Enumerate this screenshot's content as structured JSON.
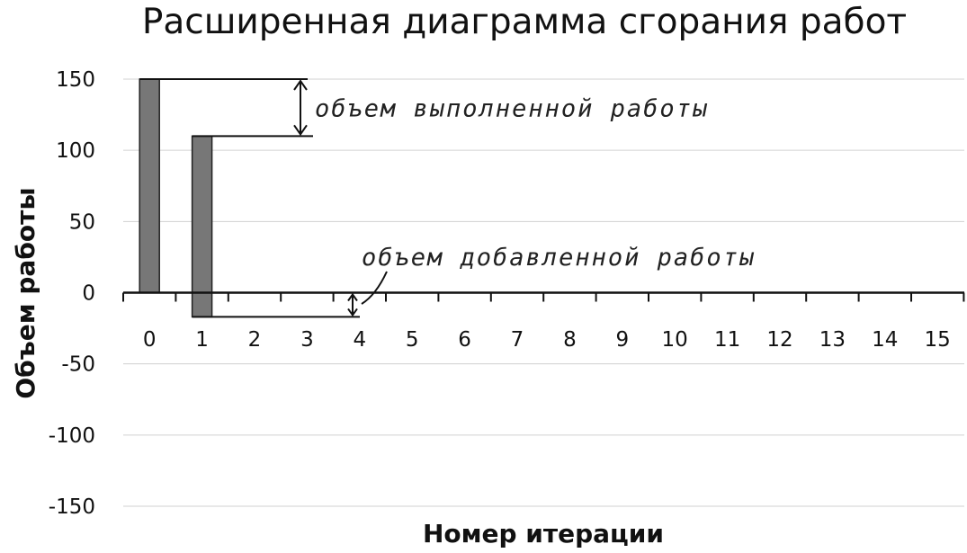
{
  "chart_data": {
    "type": "bar",
    "title": "Расширенная диаграмма сгорания работ",
    "xlabel": "Номер итерации",
    "ylabel": "Объем работы",
    "categories": [
      "0",
      "1",
      "2",
      "3",
      "4",
      "5",
      "6",
      "7",
      "8",
      "9",
      "10",
      "11",
      "12",
      "13",
      "14",
      "15"
    ],
    "series": [
      {
        "values": [
          150,
          110,
          null,
          null,
          null,
          null,
          null,
          null,
          null,
          null,
          null,
          null,
          null,
          null,
          null,
          null
        ],
        "values_below_zero": [
          0,
          -17,
          null,
          null,
          null,
          null,
          null,
          null,
          null,
          null,
          null,
          null,
          null,
          null,
          null,
          null
        ]
      }
    ],
    "yticks": [
      150,
      100,
      50,
      0,
      -50,
      -100,
      -150
    ],
    "ylim": [
      -150,
      150
    ],
    "grid": true,
    "legend": "none",
    "annotations": [
      {
        "text": "объем выполненной работы",
        "from_value": 150,
        "to_value": 110
      },
      {
        "text": "объем добавленной работы",
        "from_value": 0,
        "to_value": -17
      }
    ],
    "colors": {
      "bar_fill": "#777777",
      "bar_stroke": "#222222",
      "grid": "#d0d0d0",
      "axis": "#111111"
    }
  }
}
